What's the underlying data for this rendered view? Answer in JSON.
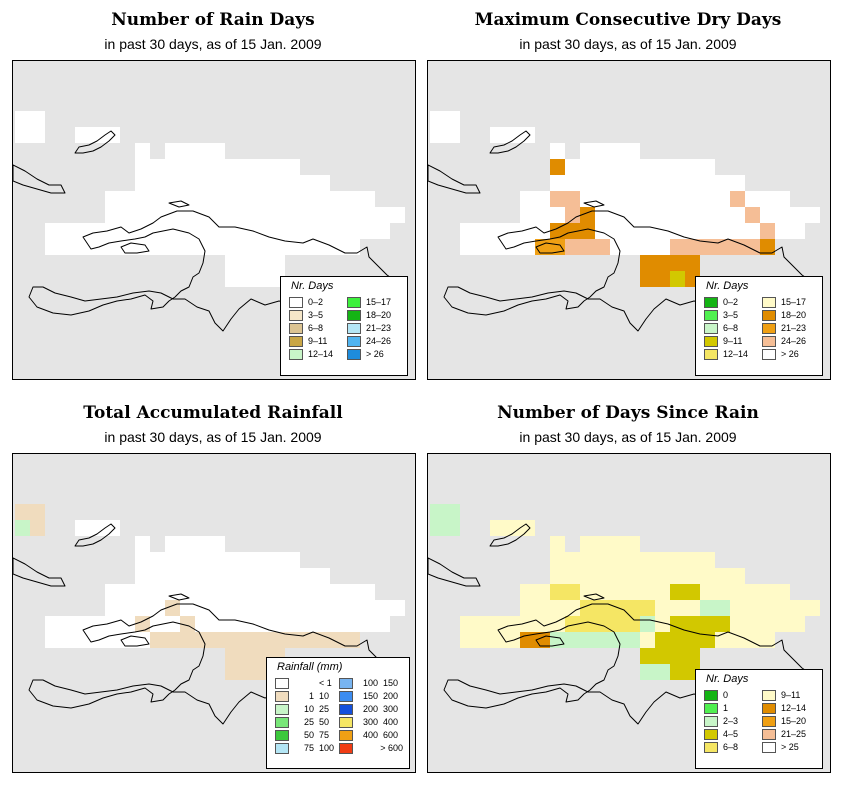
{
  "panels": [
    {
      "title": "Number of Rain Days",
      "subtitle": "in past 30 days, as of  15 Jan. 2009",
      "legend_title": "Nr. Days",
      "legend": [
        {
          "label": "0–2",
          "color": "#ffffff"
        },
        {
          "label": "3–5",
          "color": "#f5e6c8"
        },
        {
          "label": "6–8",
          "color": "#dcc492"
        },
        {
          "label": "9–11",
          "color": "#c9a646"
        },
        {
          "label": "12–14",
          "color": "#c8f5c8"
        },
        {
          "label": "15–17",
          "color": "#3cf03c"
        },
        {
          "label": "18–20",
          "color": "#14b414"
        },
        {
          "label": "21–23",
          "color": "#b4e6f5"
        },
        {
          "label": "24–26",
          "color": "#50b4f0"
        },
        {
          "label": "> 26",
          "color": "#1e8cdc"
        }
      ]
    },
    {
      "title": "Maximum Consecutive Dry Days",
      "subtitle": "in past 30 days, as of  15 Jan. 2009",
      "legend_title": "Nr. Days",
      "legend": [
        {
          "label": "0–2",
          "color": "#14b414"
        },
        {
          "label": "3–5",
          "color": "#50f050"
        },
        {
          "label": "6–8",
          "color": "#c8f5c8"
        },
        {
          "label": "9–11",
          "color": "#d2c800"
        },
        {
          "label": "12–14",
          "color": "#f5e664"
        },
        {
          "label": "15–17",
          "color": "#fffac8"
        },
        {
          "label": "18–20",
          "color": "#e08c00"
        },
        {
          "label": "21–23",
          "color": "#f0a014"
        },
        {
          "label": "24–26",
          "color": "#f5be96"
        },
        {
          "label": "> 26",
          "color": "#ffffff"
        }
      ]
    },
    {
      "title": "Total Accumulated Rainfall",
      "subtitle": "in past 30 days, as of  15 Jan. 2009",
      "legend_title": "Rainfall (mm)",
      "legend": [
        {
          "a": "",
          "b": "< 1",
          "color": "#ffffff"
        },
        {
          "a": "1",
          "b": "10",
          "color": "#f0dcbe"
        },
        {
          "a": "10",
          "b": "25",
          "color": "#c8f5c8"
        },
        {
          "a": "25",
          "b": "50",
          "color": "#78e678"
        },
        {
          "a": "50",
          "b": "75",
          "color": "#3cc83c"
        },
        {
          "a": "75",
          "b": "100",
          "color": "#b4e6f5"
        },
        {
          "a": "100",
          "b": "150",
          "color": "#78b4f0"
        },
        {
          "a": "150",
          "b": "200",
          "color": "#3c8cf0"
        },
        {
          "a": "200",
          "b": "300",
          "color": "#1450dc"
        },
        {
          "a": "300",
          "b": "400",
          "color": "#f5e664"
        },
        {
          "a": "400",
          "b": "600",
          "color": "#f0a014"
        },
        {
          "a": "",
          "b": "> 600",
          "color": "#f03c14"
        }
      ]
    },
    {
      "title": "Number of Days Since Rain",
      "subtitle": "in past 30 days, as of  15 Jan. 2009",
      "legend_title": "Nr. Days",
      "legend": [
        {
          "label": "0",
          "color": "#14b414"
        },
        {
          "label": "1",
          "color": "#50f050"
        },
        {
          "label": "2–3",
          "color": "#c8f5c8"
        },
        {
          "label": "4–5",
          "color": "#d2c800"
        },
        {
          "label": "6–8",
          "color": "#f5e664"
        },
        {
          "label": "9–11",
          "color": "#fffac8"
        },
        {
          "label": "12–14",
          "color": "#e08c00"
        },
        {
          "label": "15–20",
          "color": "#f0a014"
        },
        {
          "label": "21–25",
          "color": "#f5be96"
        },
        {
          "label": "> 25",
          "color": "#ffffff"
        }
      ]
    }
  ],
  "colors": {
    "background": "#e5e5e5",
    "coast": "#000000"
  }
}
